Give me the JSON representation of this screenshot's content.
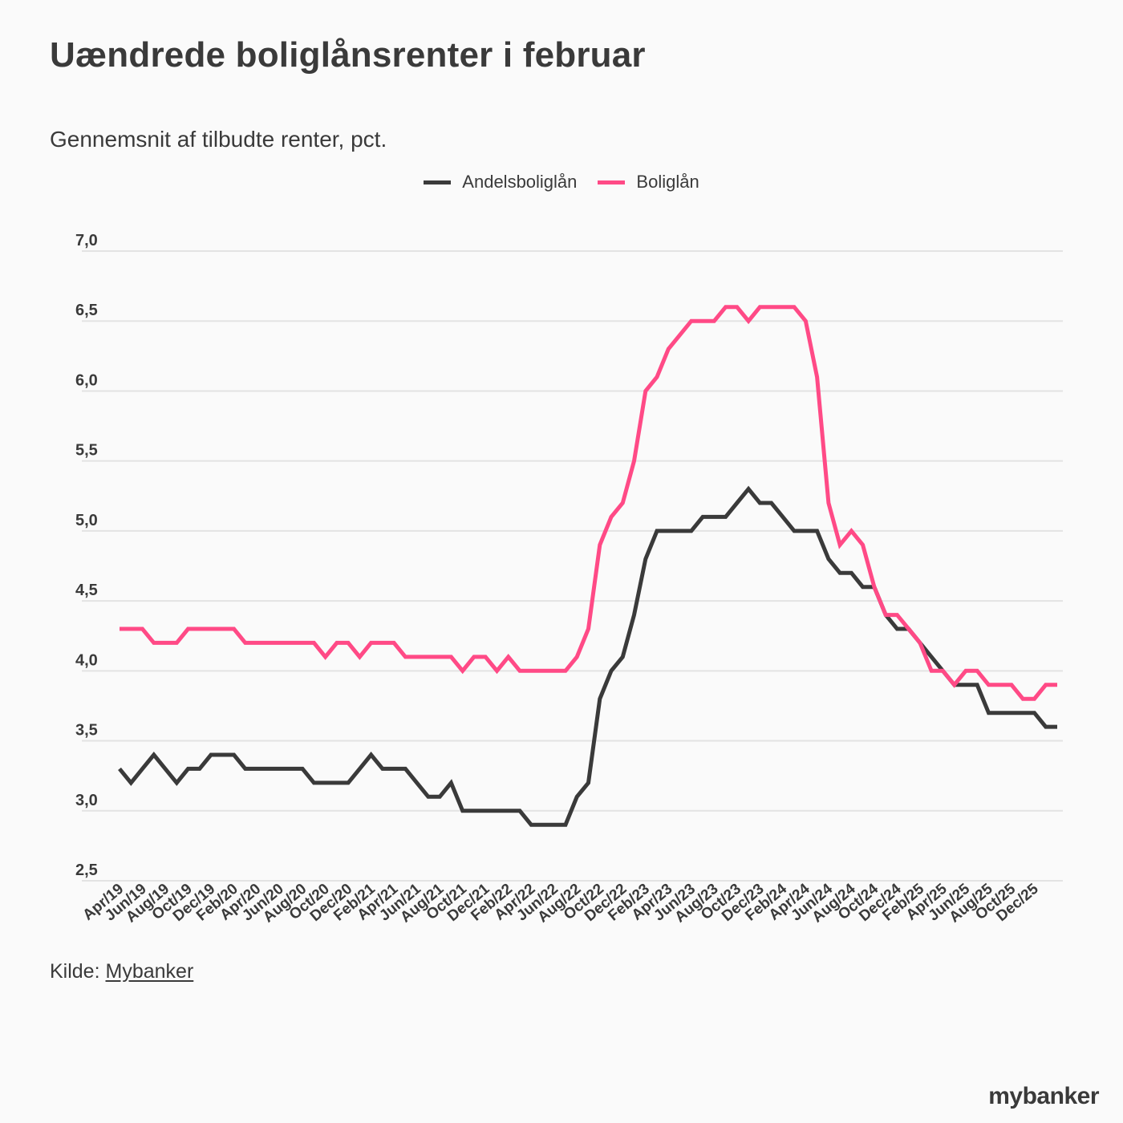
{
  "header": {
    "title": "Uændrede boliglånsrenter i februar",
    "subtitle": "Gennemsnit af tilbudte renter, pct."
  },
  "legend": [
    {
      "label": "Andelsboliglån",
      "color": "#3a3a3a"
    },
    {
      "label": "Boliglån",
      "color": "#ff4a86"
    }
  ],
  "footer": {
    "source_prefix": "Kilde:",
    "source_link": "Mybanker",
    "logo": "mybanker"
  },
  "chart_data": {
    "type": "line",
    "title": "Uændrede boliglånsrenter i februar",
    "subtitle": "Gennemsnit af tilbudte renter, pct.",
    "xlabel": "",
    "ylabel": "",
    "ylim": [
      2.5,
      7.0
    ],
    "yticks": [
      2.5,
      3.0,
      3.5,
      4.0,
      4.5,
      5.0,
      5.5,
      6.0,
      6.5,
      7.0
    ],
    "ytick_labels": [
      "2,5",
      "3,0",
      "3,5",
      "4,0",
      "4,5",
      "5,0",
      "5,5",
      "6,0",
      "6,5",
      "7,0"
    ],
    "grid": true,
    "legend_position": "top-center",
    "x": [
      "Apr/19",
      "May/19",
      "Jun/19",
      "Jul/19",
      "Aug/19",
      "Sep/19",
      "Oct/19",
      "Nov/19",
      "Dec/19",
      "Jan/20",
      "Feb/20",
      "Mar/20",
      "Apr/20",
      "May/20",
      "Jun/20",
      "Jul/20",
      "Aug/20",
      "Sep/20",
      "Oct/20",
      "Nov/20",
      "Dec/20",
      "Jan/21",
      "Feb/21",
      "Mar/21",
      "Apr/21",
      "May/21",
      "Jun/21",
      "Jul/21",
      "Aug/21",
      "Sep/21",
      "Oct/21",
      "Nov/21",
      "Dec/21",
      "Jan/22",
      "Feb/22",
      "Mar/22",
      "Apr/22",
      "May/22",
      "Jun/22",
      "Jul/22",
      "Aug/22",
      "Sep/22",
      "Oct/22",
      "Nov/22",
      "Dec/22",
      "Jan/23",
      "Feb/23",
      "Mar/23",
      "Apr/23",
      "May/23",
      "Jun/23",
      "Jul/23",
      "Aug/23",
      "Sep/23",
      "Oct/23",
      "Nov/23",
      "Dec/23",
      "Jan/24",
      "Feb/24",
      "Mar/24",
      "Apr/24",
      "May/24",
      "Jun/24",
      "Jul/24",
      "Aug/24",
      "Sep/24",
      "Oct/24",
      "Nov/24",
      "Dec/24",
      "Jan/25",
      "Feb/25",
      "Mar/25",
      "Apr/25",
      "May/25",
      "Jun/25",
      "Jul/25",
      "Aug/25",
      "Sep/25",
      "Oct/25",
      "Nov/25",
      "Dec/25",
      "Jan/26",
      "Feb/26"
    ],
    "xtick_labels": [
      "Apr/19",
      "Jun/19",
      "Aug/19",
      "Oct/19",
      "Dec/19",
      "Feb/20",
      "Apr/20",
      "Jun/20",
      "Aug/20",
      "Oct/20",
      "Dec/20",
      "Feb/21",
      "Apr/21",
      "Jun/21",
      "Aug/21",
      "Oct/21",
      "Dec/21",
      "Feb/22",
      "Apr/22",
      "Jun/22",
      "Aug/22",
      "Oct/22",
      "Dec/22",
      "Feb/23",
      "Apr/23",
      "Jun/23",
      "Aug/23",
      "Oct/23",
      "Dec/23",
      "Feb/24",
      "Apr/24",
      "Jun/24",
      "Aug/24",
      "Oct/24",
      "Dec/24",
      "Feb/25",
      "Apr/25",
      "Jun/25",
      "Aug/25",
      "Oct/25",
      "Dec/25"
    ],
    "series": [
      {
        "name": "Andelsboliglån",
        "color": "#3a3a3a",
        "values": [
          3.3,
          3.2,
          3.3,
          3.4,
          3.3,
          3.2,
          3.3,
          3.3,
          3.4,
          3.4,
          3.4,
          3.3,
          3.3,
          3.3,
          3.3,
          3.3,
          3.3,
          3.2,
          3.2,
          3.2,
          3.2,
          3.3,
          3.4,
          3.3,
          3.3,
          3.3,
          3.2,
          3.1,
          3.1,
          3.2,
          3.0,
          3.0,
          3.0,
          3.0,
          3.0,
          3.0,
          2.9,
          2.9,
          2.9,
          2.9,
          3.1,
          3.2,
          3.8,
          4.0,
          4.1,
          4.4,
          4.8,
          5.0,
          5.0,
          5.0,
          5.0,
          5.1,
          5.1,
          5.1,
          5.2,
          5.3,
          5.2,
          5.2,
          5.1,
          5.0,
          5.0,
          5.0,
          4.8,
          4.7,
          4.7,
          4.6,
          4.6,
          4.4,
          4.3,
          4.3,
          4.2,
          4.1,
          4.0,
          3.9,
          3.9,
          3.9,
          3.7,
          3.7,
          3.7,
          3.7,
          3.7,
          3.6,
          3.6
        ]
      },
      {
        "name": "Boliglån",
        "color": "#ff4a86",
        "values": [
          4.3,
          4.3,
          4.3,
          4.2,
          4.2,
          4.2,
          4.3,
          4.3,
          4.3,
          4.3,
          4.3,
          4.2,
          4.2,
          4.2,
          4.2,
          4.2,
          4.2,
          4.2,
          4.1,
          4.2,
          4.2,
          4.1,
          4.2,
          4.2,
          4.2,
          4.1,
          4.1,
          4.1,
          4.1,
          4.1,
          4.0,
          4.1,
          4.1,
          4.0,
          4.1,
          4.0,
          4.0,
          4.0,
          4.0,
          4.0,
          4.1,
          4.3,
          4.9,
          5.1,
          5.2,
          5.5,
          6.0,
          6.1,
          6.3,
          6.4,
          6.5,
          6.5,
          6.5,
          6.6,
          6.6,
          6.5,
          6.6,
          6.6,
          6.6,
          6.6,
          6.5,
          6.1,
          5.2,
          4.9,
          5.0,
          4.9,
          4.6,
          4.4,
          4.4,
          4.3,
          4.2,
          4.0,
          4.0,
          3.9,
          4.0,
          4.0,
          3.9,
          3.9,
          3.9,
          3.8,
          3.8,
          3.9,
          3.9
        ]
      }
    ]
  }
}
